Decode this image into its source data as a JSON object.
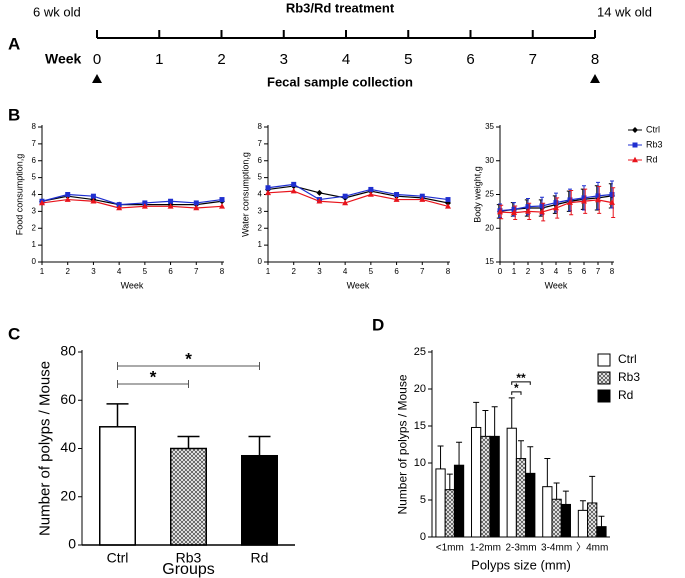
{
  "chart_data": [
    {
      "type": "timeline",
      "panel_label": "A",
      "title": "Rb3/Rd treatment",
      "start_label": "6 wk old",
      "end_label": "14 wk old",
      "axis_label": "Week",
      "xlim": [
        0,
        8
      ],
      "xticks": [
        0,
        1,
        2,
        3,
        4,
        5,
        6,
        7,
        8
      ],
      "collection_weeks": [
        0,
        8
      ],
      "footer": "Fecal sample collection"
    },
    {
      "type": "line",
      "panel_label": "B",
      "xlabel": "Week",
      "ylabel": "Food consumption,g",
      "x": [
        1,
        2,
        3,
        4,
        5,
        6,
        7,
        8
      ],
      "xlim": [
        1,
        8
      ],
      "xticks": [
        1,
        2,
        3,
        4,
        5,
        6,
        7,
        8
      ],
      "ylim": [
        0,
        8
      ],
      "yticks": [
        0,
        1,
        2,
        3,
        4,
        5,
        6,
        7,
        8
      ],
      "series": [
        {
          "name": "Ctrl",
          "color": "#000000",
          "marker": "diamond",
          "values": [
            3.6,
            3.9,
            3.7,
            3.4,
            3.4,
            3.4,
            3.4,
            3.6
          ]
        },
        {
          "name": "Rb3",
          "color": "#1f2fd0",
          "marker": "square",
          "values": [
            3.6,
            4.0,
            3.9,
            3.4,
            3.5,
            3.6,
            3.5,
            3.7
          ]
        },
        {
          "name": "Rd",
          "color": "#e8141c",
          "marker": "triangle",
          "values": [
            3.5,
            3.7,
            3.6,
            3.2,
            3.3,
            3.3,
            3.2,
            3.3
          ]
        }
      ]
    },
    {
      "type": "line",
      "xlabel": "Week",
      "ylabel": "Water consumption,g",
      "x": [
        1,
        2,
        3,
        4,
        5,
        6,
        7,
        8
      ],
      "xlim": [
        1,
        8
      ],
      "xticks": [
        1,
        2,
        3,
        4,
        5,
        6,
        7,
        8
      ],
      "ylim": [
        0,
        8
      ],
      "yticks": [
        0,
        1,
        2,
        3,
        4,
        5,
        6,
        7,
        8
      ],
      "series": [
        {
          "name": "Ctrl",
          "color": "#000000",
          "marker": "diamond",
          "values": [
            4.3,
            4.5,
            4.1,
            3.8,
            4.2,
            3.9,
            3.8,
            3.5
          ]
        },
        {
          "name": "Rb3",
          "color": "#1f2fd0",
          "marker": "square",
          "values": [
            4.4,
            4.6,
            3.7,
            3.9,
            4.3,
            4.0,
            3.9,
            3.7
          ]
        },
        {
          "name": "Rd",
          "color": "#e8141c",
          "marker": "triangle",
          "values": [
            4.1,
            4.2,
            3.6,
            3.5,
            4.0,
            3.7,
            3.7,
            3.3
          ]
        }
      ]
    },
    {
      "type": "line",
      "xlabel": "Week",
      "ylabel": "Body weight,g",
      "x": [
        0,
        1,
        2,
        3,
        4,
        5,
        6,
        7,
        8
      ],
      "xlim": [
        0,
        8
      ],
      "xticks": [
        0,
        1,
        2,
        3,
        4,
        5,
        6,
        7,
        8
      ],
      "ylim": [
        15,
        35
      ],
      "yticks": [
        15,
        20,
        25,
        30,
        35
      ],
      "legend": "outside-top-right",
      "series": [
        {
          "name": "Ctrl",
          "color": "#000000",
          "marker": "diamond",
          "values": [
            22.5,
            22.8,
            23.0,
            23.0,
            23.5,
            24.0,
            24.3,
            24.5,
            24.8
          ],
          "errors": [
            1.0,
            1.0,
            1.2,
            1.2,
            1.3,
            1.5,
            1.5,
            1.8,
            1.8
          ]
        },
        {
          "name": "Rb3",
          "color": "#1f2fd0",
          "marker": "square",
          "values": [
            22.6,
            22.8,
            23.2,
            23.3,
            23.8,
            24.2,
            24.5,
            24.8,
            25.0
          ],
          "errors": [
            1.0,
            1.0,
            1.2,
            1.3,
            1.4,
            1.6,
            1.8,
            2.0,
            2.0
          ]
        },
        {
          "name": "Rd",
          "color": "#e8141c",
          "marker": "triangle",
          "values": [
            22.4,
            22.3,
            22.5,
            22.4,
            23.0,
            23.8,
            24.0,
            24.2,
            23.8
          ],
          "errors": [
            1.0,
            1.0,
            1.2,
            1.3,
            1.5,
            1.8,
            1.8,
            2.0,
            2.2
          ]
        }
      ]
    },
    {
      "type": "bar",
      "panel_label": "C",
      "xlabel": "Groups",
      "ylabel": "Number of polyps / Mouse",
      "categories": [
        "Ctrl",
        "Rb3",
        "Rd"
      ],
      "values": [
        49,
        40,
        37
      ],
      "errors": [
        9.5,
        5,
        8
      ],
      "bar_styles": [
        "open",
        "hatched",
        "solid"
      ],
      "ylim": [
        0,
        80
      ],
      "yticks": [
        0,
        20,
        40,
        60,
        80
      ],
      "annotations": [
        {
          "from": 0,
          "to": 1,
          "label": "*"
        },
        {
          "from": 0,
          "to": 2,
          "label": "*"
        }
      ]
    },
    {
      "type": "grouped_bar",
      "panel_label": "D",
      "xlabel": "Polyps size (mm)",
      "ylabel": "Number of polyps / Mouse",
      "categories": [
        "<1mm",
        "1-2mm",
        "2-3mm",
        "3-4mm",
        "〉4mm"
      ],
      "ylim": [
        0,
        25
      ],
      "yticks": [
        0,
        5,
        10,
        15,
        20,
        25
      ],
      "legend": "top-right",
      "series": [
        {
          "name": "Ctrl",
          "style": "open",
          "values": [
            9.2,
            14.8,
            14.7,
            6.8,
            3.6
          ],
          "errors": [
            3.1,
            3.4,
            4.1,
            3.8,
            1.3
          ]
        },
        {
          "name": "Rb3",
          "style": "hatched",
          "values": [
            6.4,
            13.6,
            10.6,
            5.1,
            4.6
          ],
          "errors": [
            2.1,
            3.5,
            2.4,
            2.2,
            3.6
          ]
        },
        {
          "name": "Rd",
          "style": "solid",
          "values": [
            9.7,
            13.6,
            8.6,
            4.4,
            1.4
          ],
          "errors": [
            3.1,
            4.0,
            3.6,
            1.8,
            1.4
          ]
        }
      ],
      "annotations": [
        {
          "category": 2,
          "from": 0,
          "to": 1,
          "label": "*"
        },
        {
          "category": 2,
          "from": 0,
          "to": 2,
          "label": "**"
        }
      ]
    }
  ]
}
